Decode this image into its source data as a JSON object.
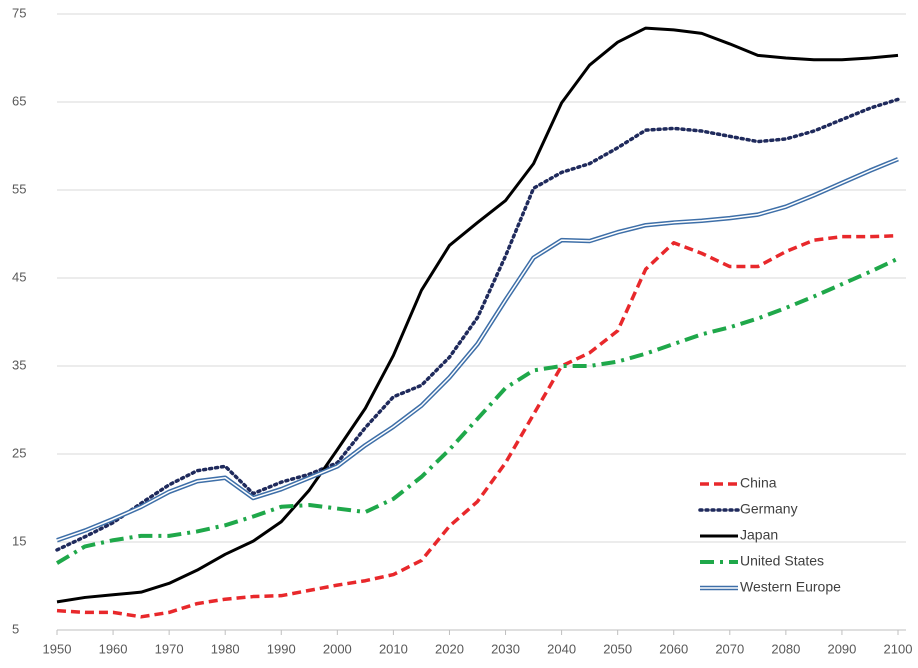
{
  "chart_data": {
    "type": "line",
    "x": [
      1950,
      1955,
      1960,
      1965,
      1970,
      1975,
      1980,
      1985,
      1990,
      1995,
      2000,
      2005,
      2010,
      2015,
      2020,
      2025,
      2030,
      2035,
      2040,
      2045,
      2050,
      2055,
      2060,
      2065,
      2070,
      2075,
      2080,
      2085,
      2090,
      2095,
      2100
    ],
    "xlim": [
      1950,
      2100
    ],
    "xticks": [
      1950,
      1960,
      1970,
      1980,
      1990,
      2000,
      2010,
      2020,
      2030,
      2040,
      2050,
      2060,
      2070,
      2080,
      2090,
      2100
    ],
    "ylim": [
      5,
      75
    ],
    "yticks": [
      5,
      15,
      25,
      35,
      45,
      55,
      65,
      75
    ],
    "grid": true,
    "legend": "lower-right",
    "series": [
      {
        "name": "China",
        "color": "#e8282b",
        "style": "dashed",
        "values": [
          7.2,
          7.0,
          7.0,
          6.5,
          7.0,
          8.0,
          8.5,
          8.8,
          8.9,
          9.5,
          10.1,
          10.6,
          11.3,
          12.9,
          16.8,
          19.6,
          24.0,
          29.5,
          35.0,
          36.5,
          39.0,
          46.0,
          49.0,
          47.8,
          46.3,
          46.3,
          48.0,
          49.3,
          49.7,
          49.7,
          49.8
        ]
      },
      {
        "name": "Germany",
        "color": "#1f2a5c",
        "style": "dotted",
        "values": [
          14.1,
          15.6,
          17.2,
          19.4,
          21.5,
          23.1,
          23.6,
          20.5,
          21.8,
          22.7,
          24.0,
          28.0,
          31.5,
          32.8,
          36.0,
          40.5,
          47.5,
          55.2,
          57.0,
          58.0,
          59.8,
          61.8,
          62.0,
          61.7,
          61.1,
          60.5,
          60.8,
          61.7,
          63.0,
          64.3,
          65.3
        ]
      },
      {
        "name": "Japan",
        "color": "#000000",
        "style": "solid",
        "values": [
          8.2,
          8.7,
          9.0,
          9.3,
          10.3,
          11.8,
          13.6,
          15.1,
          17.3,
          20.9,
          25.5,
          30.2,
          36.2,
          43.6,
          48.7,
          51.3,
          53.8,
          58.0,
          64.9,
          69.2,
          71.8,
          73.4,
          73.2,
          72.8,
          71.6,
          70.3,
          70.0,
          69.8,
          69.8,
          70.0,
          70.3
        ]
      },
      {
        "name": "United States",
        "color": "#1fa84a",
        "style": "dashdot",
        "values": [
          12.6,
          14.5,
          15.2,
          15.7,
          15.7,
          16.2,
          16.9,
          17.9,
          19.0,
          19.2,
          18.8,
          18.4,
          19.9,
          22.4,
          25.5,
          29.0,
          32.5,
          34.5,
          35.0,
          35.0,
          35.5,
          36.4,
          37.5,
          38.6,
          39.4,
          40.4,
          41.6,
          42.9,
          44.3,
          45.7,
          47.2
        ]
      },
      {
        "name": "Western Europe",
        "color": "#3e6fa8",
        "style": "double",
        "values": [
          15.2,
          16.3,
          17.6,
          19.0,
          20.7,
          21.9,
          22.3,
          20.0,
          21.0,
          22.3,
          23.6,
          26.0,
          28.1,
          30.5,
          33.7,
          37.5,
          42.5,
          47.3,
          49.3,
          49.2,
          50.2,
          51.0,
          51.3,
          51.5,
          51.8,
          52.2,
          53.1,
          54.4,
          55.8,
          57.2,
          58.5
        ]
      }
    ]
  }
}
